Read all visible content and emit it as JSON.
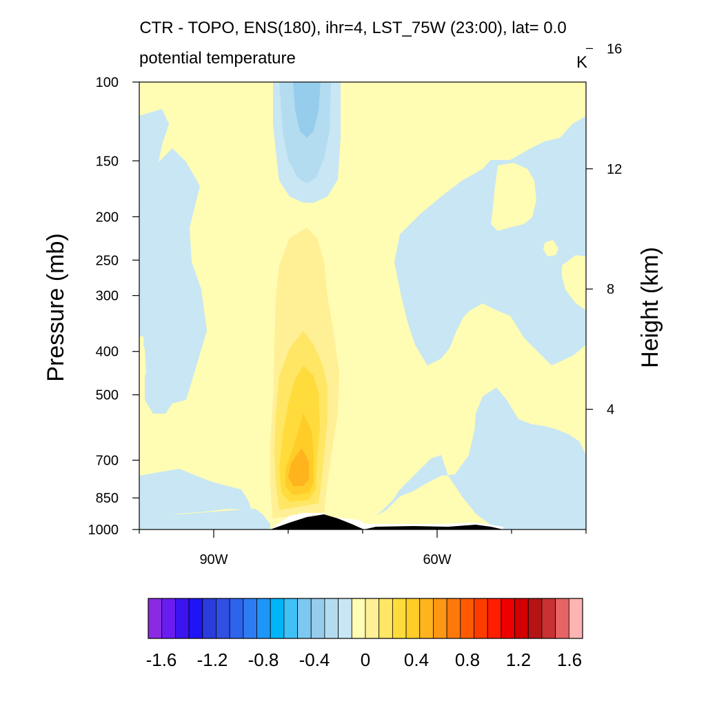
{
  "chart_data": {
    "type": "heatmap",
    "title": "CTR - TOPO, ENS(180), ihr=4, LST_75W (23:00), lat=  0.0",
    "subtitle_left": "potential temperature",
    "subtitle_right": "K",
    "ylabel": "Pressure (mb)",
    "ylabel_right": "Height (km)",
    "xlabel": "",
    "x_range_deg": [
      -100,
      -40
    ],
    "y_range_mb": [
      1000,
      100
    ],
    "y_scale": "log",
    "x_ticks": [
      {
        "value": -90,
        "label": "90W"
      },
      {
        "value": -60,
        "label": "60W"
      }
    ],
    "x_minor_ticks": [
      -100,
      -80,
      -70,
      -50,
      -40
    ],
    "y_ticks": [
      {
        "value": 1000,
        "label": "1000"
      },
      {
        "value": 850,
        "label": "850"
      },
      {
        "value": 700,
        "label": "700"
      },
      {
        "value": 500,
        "label": "500"
      },
      {
        "value": 400,
        "label": "400"
      },
      {
        "value": 300,
        "label": "300"
      },
      {
        "value": 250,
        "label": "250"
      },
      {
        "value": 200,
        "label": "200"
      },
      {
        "value": 150,
        "label": "150"
      },
      {
        "value": 100,
        "label": "100"
      }
    ],
    "y_right_ticks": [
      {
        "value": 4,
        "label": "4"
      },
      {
        "value": 8,
        "label": "8"
      },
      {
        "value": 12,
        "label": "12"
      },
      {
        "value": 16,
        "label": "16"
      }
    ],
    "colorbar": {
      "min": -1.7,
      "step": 0.1,
      "labels": [
        "-1.6",
        "-1.2",
        "-0.8",
        "-0.4",
        "0",
        "0.4",
        "0.8",
        "1.2",
        "1.6"
      ],
      "colors": [
        "#8a2be2",
        "#6a1cf0",
        "#3c14f0",
        "#1e14f5",
        "#2a3cdc",
        "#3050e4",
        "#2e64ec",
        "#2e7cf4",
        "#1e96f8",
        "#00b4f8",
        "#40c0f4",
        "#7cc8f0",
        "#96ccec",
        "#b4dcf0",
        "#c8e6f4",
        "#fffcb4",
        "#fff096",
        "#ffe664",
        "#ffdc3c",
        "#ffcc28",
        "#ffb41e",
        "#ff9614",
        "#ff780a",
        "#ff5a00",
        "#ff3c00",
        "#ff1e00",
        "#ee0000",
        "#d20000",
        "#b41414",
        "#c83232",
        "#e66464",
        "#ffb4b4"
      ]
    },
    "field_levels": [
      {
        "range": [
          0.0,
          0.1
        ],
        "color": "#fffcb4"
      },
      {
        "range": [
          -0.1,
          0.0
        ],
        "color": "#c8e6f4"
      },
      {
        "range": [
          -0.2,
          -0.1
        ],
        "color": "#b4dcf0"
      },
      {
        "range": [
          -0.3,
          -0.2
        ],
        "color": "#96ccec"
      },
      {
        "range": [
          0.1,
          0.2
        ],
        "color": "#fff096"
      },
      {
        "range": [
          0.2,
          0.3
        ],
        "color": "#ffe664"
      },
      {
        "range": [
          0.3,
          0.4
        ],
        "color": "#ffdc3c"
      },
      {
        "range": [
          0.4,
          0.5
        ],
        "color": "#ffcc28"
      },
      {
        "range": [
          0.5,
          0.6
        ],
        "color": "#ffb41e"
      }
    ],
    "terrain_color": "#000000"
  }
}
